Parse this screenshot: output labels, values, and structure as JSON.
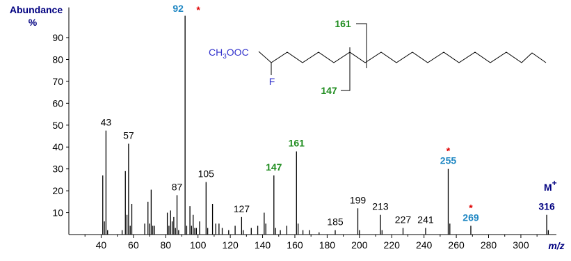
{
  "chart_data": {
    "type": "stick",
    "y_label": "Abundance",
    "y_unit": "%",
    "x_label": "m/z",
    "xlim": [
      20,
      322
    ],
    "ylim": [
      0,
      100
    ],
    "xticks": [
      40,
      60,
      80,
      100,
      120,
      140,
      160,
      180,
      200,
      220,
      240,
      260,
      280,
      300
    ],
    "xminorticks": [
      30,
      50,
      70,
      90,
      110,
      130,
      150,
      170,
      190,
      210,
      230,
      250,
      270,
      290,
      310
    ],
    "yticks": [
      10,
      20,
      30,
      40,
      50,
      60,
      70,
      80,
      90
    ],
    "color": "#000000",
    "x": [
      41,
      42,
      43,
      44,
      53,
      55,
      56,
      57,
      58,
      59,
      67,
      69,
      70,
      71,
      72,
      73,
      81,
      82,
      83,
      84,
      85,
      86,
      87,
      88,
      92,
      93,
      95,
      96,
      97,
      98,
      99,
      101,
      105,
      106,
      109,
      111,
      113,
      115,
      119,
      123,
      127,
      128,
      133,
      137,
      141,
      142,
      147,
      148,
      151,
      155,
      161,
      162,
      165,
      169,
      175,
      185,
      199,
      200,
      213,
      214,
      227,
      241,
      255,
      256,
      269,
      316,
      317
    ],
    "values": [
      27,
      6,
      47.5,
      2,
      2,
      29,
      9,
      41.5,
      4,
      14,
      5,
      15,
      5,
      20.5,
      4,
      4,
      10,
      4,
      11,
      6,
      8,
      3,
      18,
      2,
      100,
      4,
      13,
      4,
      9,
      3,
      3,
      6,
      24,
      3,
      14,
      5,
      5,
      3,
      2,
      4,
      8,
      2,
      3,
      4,
      10,
      5,
      27,
      3,
      2,
      4,
      38,
      5,
      2,
      2,
      1,
      2,
      12,
      2,
      9,
      2,
      3,
      3,
      30,
      5,
      4,
      9,
      2
    ],
    "peak_labels": [
      {
        "mz": 43,
        "color": "#000000"
      },
      {
        "mz": 57,
        "color": "#000000"
      },
      {
        "mz": 87,
        "color": "#000000"
      },
      {
        "mz": 92,
        "color": "#1f87c3",
        "star": true
      },
      {
        "mz": 105,
        "color": "#000000"
      },
      {
        "mz": 127,
        "color": "#000000"
      },
      {
        "mz": 147,
        "color": "#1e8c1e"
      },
      {
        "mz": 161,
        "color": "#1e8c1e"
      },
      {
        "mz": 185,
        "color": "#000000"
      },
      {
        "mz": 199,
        "color": "#000000"
      },
      {
        "mz": 213,
        "color": "#000000"
      },
      {
        "mz": 227,
        "color": "#000000"
      },
      {
        "mz": 241,
        "color": "#000000"
      },
      {
        "mz": 255,
        "color": "#1f87c3",
        "star": true
      },
      {
        "mz": 269,
        "color": "#1f87c3",
        "star": true
      },
      {
        "mz": 316,
        "color": "#000080"
      }
    ],
    "star_symbol": "*",
    "molecular_ion": {
      "text": "M",
      "sup": "+"
    },
    "structure": {
      "ester": "CH",
      "ester_sub": "3",
      "ester_rest": "OOC",
      "substituent": "F",
      "fragment_upper": "161",
      "fragment_lower": "147"
    }
  }
}
